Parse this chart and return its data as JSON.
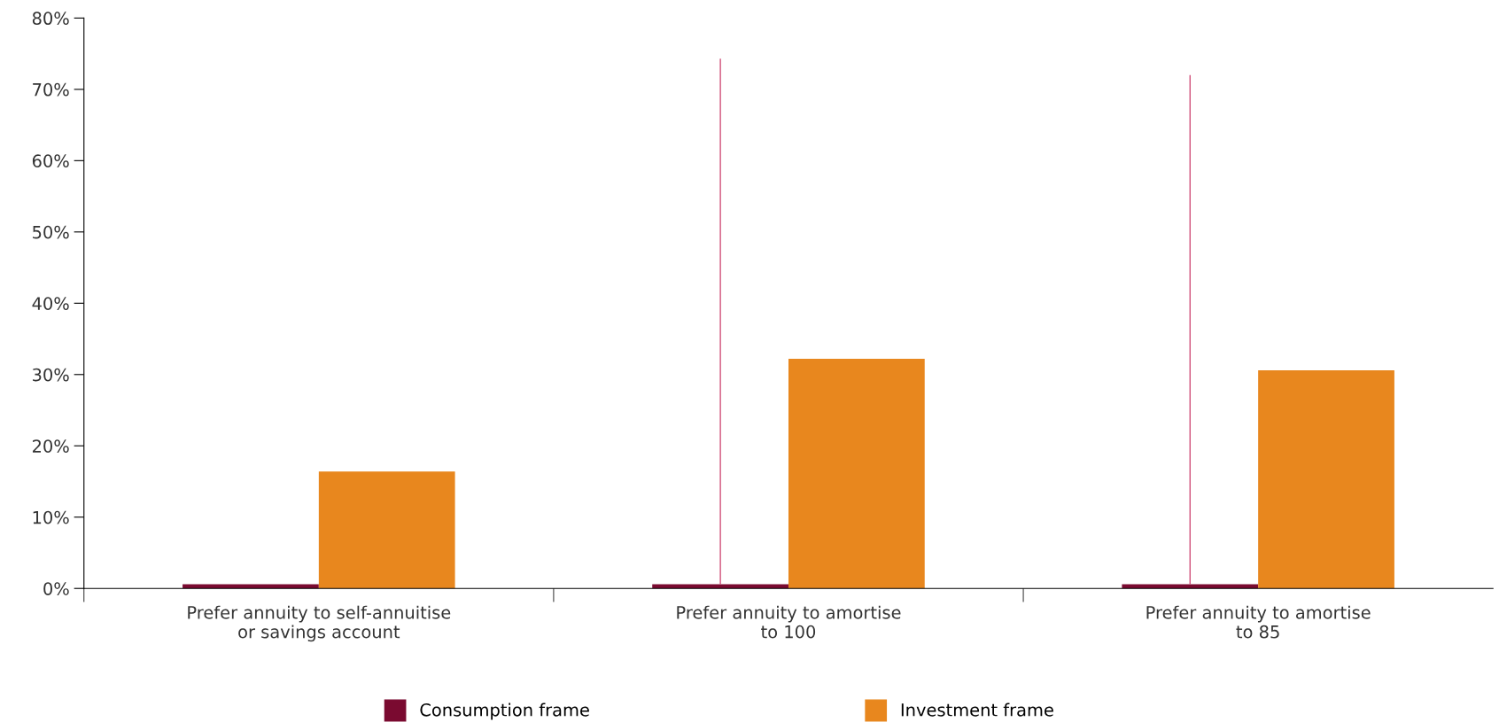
{
  "chart_data": {
    "type": "bar",
    "categories": [
      "Prefer annuity to self-annuitise\nor savings account",
      "Prefer annuity to amortise\nto 100",
      "Prefer annuity to amortise\nto 85"
    ],
    "series": [
      {
        "name": "Consumption frame",
        "color": "#7a0a30",
        "values": [
          0.6,
          0.6,
          0.6
        ],
        "errors": [
          null,
          [
            0.6,
            74.3
          ],
          [
            0.6,
            72.0
          ]
        ]
      },
      {
        "name": "Investment frame",
        "color": "#e8871e",
        "values": [
          16.4,
          32.2,
          30.6
        ]
      }
    ],
    "ylim": [
      0,
      80
    ],
    "yticks": [
      {
        "value": 0,
        "label": "0%"
      },
      {
        "value": 10,
        "label": "10%"
      },
      {
        "value": 20,
        "label": "20%"
      },
      {
        "value": 30,
        "label": "30%"
      },
      {
        "value": 40,
        "label": "40%"
      },
      {
        "value": 50,
        "label": "50%"
      },
      {
        "value": 60,
        "label": "60%"
      },
      {
        "value": 70,
        "label": "70%"
      },
      {
        "value": 80,
        "label": "80%"
      }
    ],
    "grid": false,
    "legend": "bottom"
  }
}
